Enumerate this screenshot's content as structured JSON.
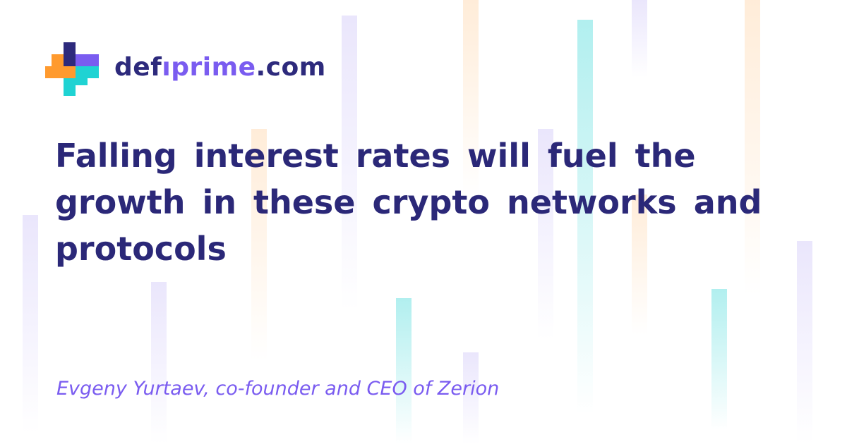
{
  "brand": {
    "part1": "def",
    "part2": "ıprime",
    "part3": ".com",
    "colors": {
      "dark": "#2d2a7c",
      "accent": "#7a5cf0",
      "orange": "#ff9a2e",
      "teal": "#1fd3d3"
    }
  },
  "headline": "Falling interest rates will fuel the growth in these crypto networks and protocols",
  "author": "Evgeny Yurtaev, co-founder and CEO of Zerion",
  "background": {
    "bar_colors": [
      "purple",
      "orange",
      "teal"
    ]
  }
}
